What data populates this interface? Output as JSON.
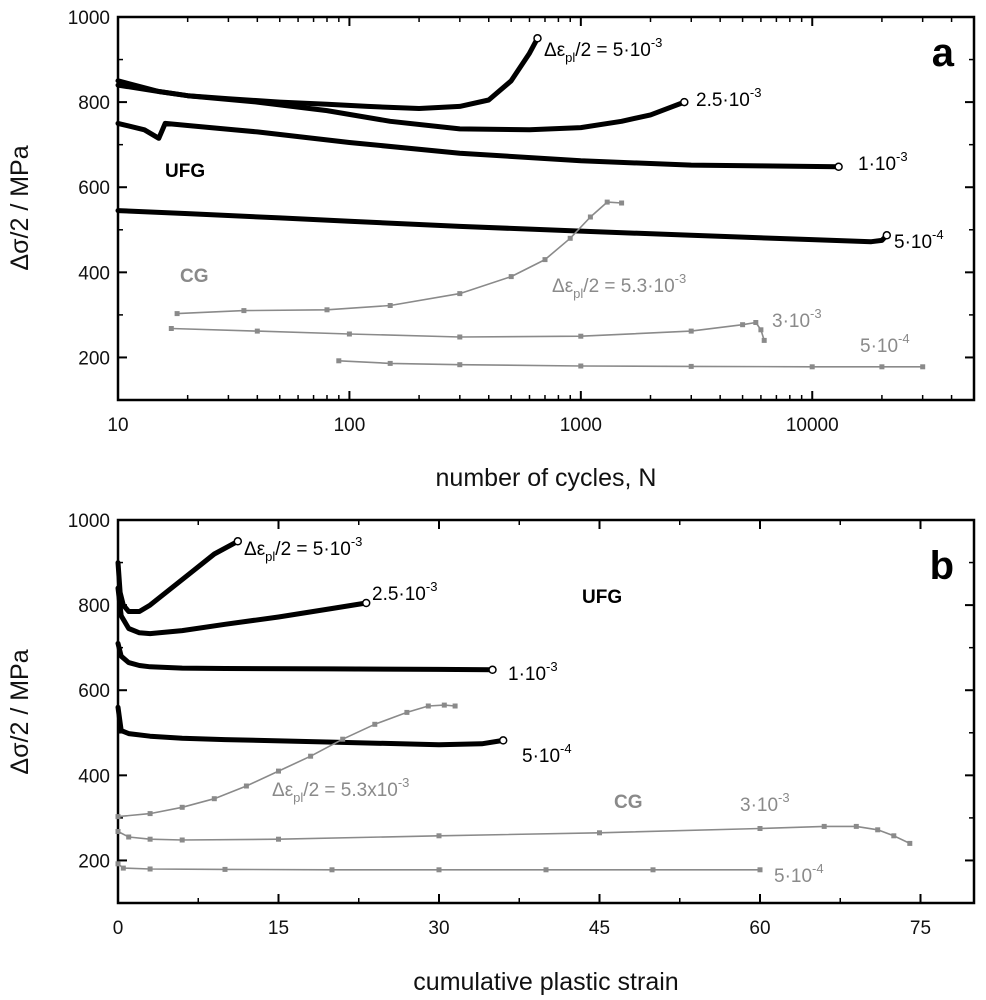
{
  "colors": {
    "ufg": "#000000",
    "cg": "#8a8a8a"
  },
  "chart_data": [
    {
      "type": "line",
      "panel": "a",
      "xscale": "log",
      "xlabel": "number of cycles, N",
      "ylabel": "Δσ/2 / MPa",
      "xlim": [
        10,
        50000
      ],
      "ylim": [
        100,
        1000
      ],
      "xticks": [
        10,
        100,
        1000,
        10000
      ],
      "xtick_labels": [
        "10",
        "100",
        "1000",
        "10000"
      ],
      "yticks": [
        200,
        400,
        600,
        800,
        1000
      ],
      "ytick_labels": [
        "200",
        "400",
        "600",
        "800",
        "1000"
      ],
      "series": [
        {
          "name": "UFG Δε_pl/2 = 5·10⁻³",
          "group": "UFG",
          "x": [
            10,
            15,
            20,
            30,
            50,
            80,
            120,
            200,
            300,
            400,
            500,
            600,
            650
          ],
          "y": [
            850,
            825,
            815,
            808,
            800,
            795,
            790,
            785,
            790,
            805,
            850,
            915,
            950
          ]
        },
        {
          "name": "UFG 2.5·10⁻³",
          "group": "UFG",
          "x": [
            10,
            15,
            20,
            40,
            80,
            150,
            300,
            600,
            1000,
            1500,
            2000,
            2500,
            2800
          ],
          "y": [
            840,
            825,
            815,
            800,
            780,
            755,
            737,
            735,
            740,
            755,
            770,
            790,
            800
          ]
        },
        {
          "name": "UFG 1·10⁻³",
          "group": "UFG",
          "x": [
            10,
            13,
            15,
            16,
            20,
            40,
            100,
            300,
            1000,
            3000,
            6000,
            13000
          ],
          "y": [
            750,
            735,
            715,
            750,
            745,
            730,
            705,
            680,
            662,
            652,
            650,
            648
          ]
        },
        {
          "name": "UFG 5·10⁻⁴",
          "group": "UFG",
          "x": [
            10,
            20,
            50,
            100,
            300,
            1000,
            3000,
            10000,
            18000,
            20000,
            21000
          ],
          "y": [
            545,
            538,
            528,
            520,
            508,
            497,
            487,
            477,
            472,
            475,
            487
          ]
        },
        {
          "name": "CG Δε_pl/2 = 5.3·10⁻³",
          "group": "CG",
          "x": [
            18,
            35,
            80,
            150,
            300,
            500,
            700,
            900,
            1100,
            1300,
            1500
          ],
          "y": [
            303,
            310,
            312,
            322,
            350,
            390,
            430,
            480,
            530,
            565,
            563
          ]
        },
        {
          "name": "CG 3·10⁻³",
          "group": "CG",
          "x": [
            17,
            40,
            100,
            300,
            1000,
            3000,
            5000,
            5700,
            6000,
            6200
          ],
          "y": [
            268,
            262,
            255,
            248,
            250,
            262,
            277,
            282,
            265,
            240
          ]
        },
        {
          "name": "CG 5·10⁻⁴",
          "group": "CG",
          "x": [
            90,
            150,
            300,
            1000,
            3000,
            10000,
            20000,
            30000
          ],
          "y": [
            192,
            186,
            183,
            180,
            179,
            178,
            178,
            178
          ]
        }
      ],
      "annotations": {
        "s1_pre": "Δε",
        "s1_sub": "pl",
        "s1_mid": "/2 = 5·10",
        "s1_sup": "-3",
        "s2_base": "2.5·10",
        "s2_sup": "-3",
        "s3_base": "1·10",
        "s3_sup": "-3",
        "s4_base": "5·10",
        "s4_sup": "-4",
        "s5_pre": "Δε",
        "s5_sub": "pl",
        "s5_mid": "/2 = 5.3·10",
        "s5_sup": "-3",
        "s6_base": "3·10",
        "s6_sup": "-3",
        "s7_base": "5·10",
        "s7_sup": "-4",
        "ufg": "UFG",
        "cg": "CG",
        "panel": "a"
      }
    },
    {
      "type": "line",
      "panel": "b",
      "xscale": "linear",
      "xlabel": "cumulative plastic strain",
      "ylabel": "Δσ/2 / MPa",
      "xlim": [
        0,
        80
      ],
      "ylim": [
        100,
        1000
      ],
      "xticks": [
        0,
        15,
        30,
        45,
        60,
        75
      ],
      "xtick_labels": [
        "0",
        "15",
        "30",
        "45",
        "60",
        "75"
      ],
      "yticks": [
        200,
        400,
        600,
        800,
        1000
      ],
      "ytick_labels": [
        "200",
        "400",
        "600",
        "800",
        "1000"
      ],
      "series": [
        {
          "name": "UFG Δε_pl/2 = 5·10⁻³",
          "group": "UFG",
          "x": [
            0,
            0.2,
            0.5,
            1,
            2,
            3,
            5,
            7,
            9,
            11.2
          ],
          "y": [
            900,
            830,
            800,
            785,
            785,
            800,
            840,
            880,
            920,
            950
          ]
        },
        {
          "name": "UFG 2.5·10⁻³",
          "group": "UFG",
          "x": [
            0,
            0.3,
            1,
            2,
            3,
            6,
            10,
            15,
            20,
            23.2
          ],
          "y": [
            840,
            775,
            745,
            735,
            733,
            740,
            755,
            772,
            792,
            805
          ]
        },
        {
          "name": "UFG 1·10⁻³",
          "group": "UFG",
          "x": [
            0,
            0.3,
            1,
            2,
            3,
            6,
            10,
            20,
            30,
            35
          ],
          "y": [
            710,
            680,
            665,
            658,
            655,
            652,
            651,
            650,
            649,
            648
          ]
        },
        {
          "name": "UFG 5·10⁻⁴",
          "group": "UFG",
          "x": [
            0,
            0.3,
            1,
            3,
            6,
            10,
            20,
            30,
            34,
            36
          ],
          "y": [
            560,
            505,
            498,
            492,
            487,
            484,
            478,
            472,
            474,
            482
          ]
        },
        {
          "name": "CG Δε_pl/2 = 5.3·10⁻³",
          "group": "CG",
          "x": [
            0,
            3,
            6,
            9,
            12,
            15,
            18,
            21,
            24,
            27,
            29,
            30.5,
            31.5
          ],
          "y": [
            303,
            310,
            325,
            345,
            375,
            410,
            445,
            485,
            520,
            548,
            563,
            565,
            563
          ]
        },
        {
          "name": "CG 3·10⁻³",
          "group": "CG",
          "x": [
            0,
            1,
            3,
            6,
            15,
            30,
            45,
            60,
            66,
            69,
            71,
            72.5,
            74
          ],
          "y": [
            268,
            255,
            250,
            248,
            250,
            258,
            265,
            275,
            280,
            280,
            272,
            258,
            240
          ]
        },
        {
          "name": "CG 5·10⁻⁴",
          "group": "CG",
          "x": [
            0,
            0.5,
            3,
            10,
            20,
            30,
            40,
            50,
            60
          ],
          "y": [
            192,
            182,
            180,
            179,
            178,
            178,
            178,
            178,
            178
          ]
        }
      ],
      "annotations": {
        "s1_pre": "Δε",
        "s1_sub": "pl",
        "s1_mid": "/2 = 5·10",
        "s1_sup": "-3",
        "s2_base": "2.5·10",
        "s2_sup": "-3",
        "s3_base": "1·10",
        "s3_sup": "-3",
        "s4_base": "5·10",
        "s4_sup": "-4",
        "s5_pre": "Δε",
        "s5_sub": "pl",
        "s5_mid": "/2 = 5.3x10",
        "s5_sup": "-3",
        "s6_base": "3·10",
        "s6_sup": "-3",
        "s7_base": "5·10",
        "s7_sup": "-4",
        "ufg": "UFG",
        "cg": "CG",
        "panel": "b"
      }
    }
  ]
}
